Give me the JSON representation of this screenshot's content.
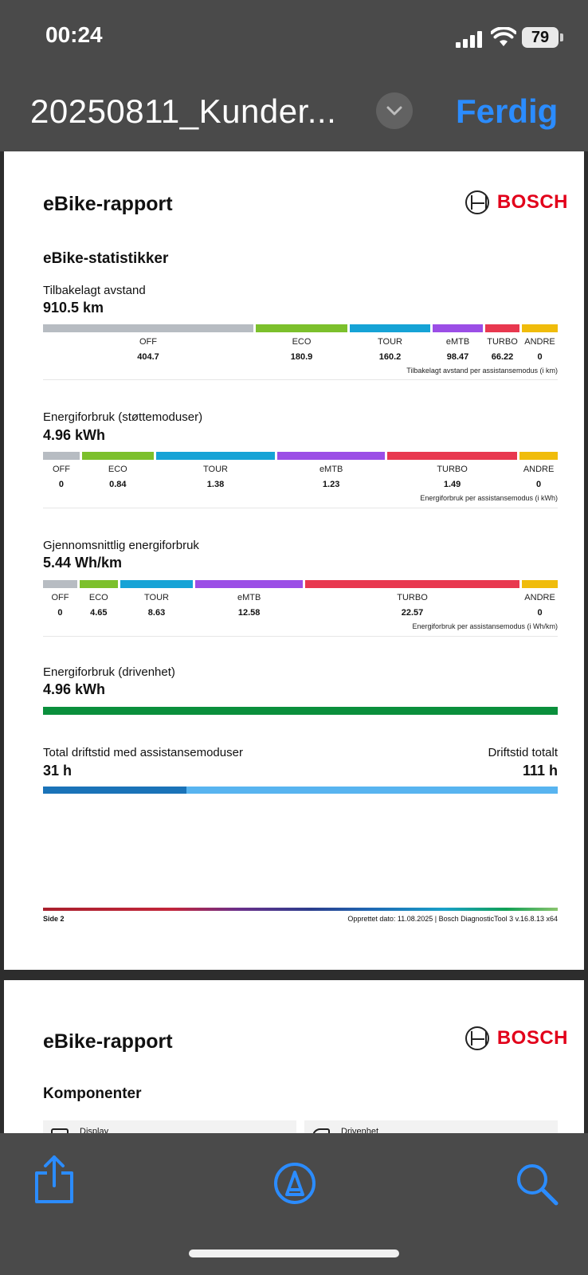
{
  "status": {
    "time": "00:24",
    "battery": "79"
  },
  "nav": {
    "title": "20250811_Kunder...",
    "done": "Ferdig"
  },
  "brand": "BOSCH",
  "page1": {
    "title": "eBike-rapport",
    "section": "eBike-statistikker",
    "distance": {
      "label": "Tilbakelagt avstand",
      "value": "910.5 km",
      "modes": [
        "OFF",
        "ECO",
        "TOUR",
        "eMTB",
        "TURBO",
        "ANDRE"
      ],
      "values": [
        "404.7",
        "180.9",
        "160.2",
        "98.47",
        "66.22",
        "0"
      ],
      "note": "Tilbakelagt avstand per assistansemodus (i km)"
    },
    "energy_modes": {
      "label": "Energiforbruk (støttemoduser)",
      "value": "4.96 kWh",
      "modes": [
        "OFF",
        "ECO",
        "TOUR",
        "eMTB",
        "TURBO",
        "ANDRE"
      ],
      "values": [
        "0",
        "0.84",
        "1.38",
        "1.23",
        "1.49",
        "0"
      ],
      "note": "Energiforbruk per assistansemodus (i kWh)"
    },
    "avg_energy": {
      "label": "Gjennomsnittlig energiforbruk",
      "value": "5.44 Wh/km",
      "modes": [
        "OFF",
        "ECO",
        "TOUR",
        "eMTB",
        "TURBO",
        "ANDRE"
      ],
      "values": [
        "0",
        "4.65",
        "8.63",
        "12.58",
        "22.57",
        "0"
      ],
      "note": "Energiforbruk per assistansemodus (i Wh/km)"
    },
    "drive_energy": {
      "label": "Energiforbruk (drivenhet)",
      "value": "4.96 kWh"
    },
    "runtime": {
      "assist_label": "Total driftstid med assistansemoduser",
      "assist_value": "31 h",
      "total_label": "Driftstid totalt",
      "total_value": "111 h",
      "fill_fraction": 0.279
    },
    "footer_left": "Side 2",
    "footer_right": "Opprettet dato: 11.08.2025 | Bosch DiagnosticTool 3 v.16.8.13 x64"
  },
  "page2": {
    "title": "eBike-rapport",
    "section": "Komponenter",
    "components": [
      "Display",
      "Drivenhet"
    ]
  },
  "colors": {
    "off": "#b7bcc2",
    "eco": "#7cc02c",
    "tour": "#16a3d6",
    "emtb": "#9b4ee6",
    "turbo": "#e8384f",
    "andre": "#f0bc0b",
    "accent": "#2b8cff"
  }
}
